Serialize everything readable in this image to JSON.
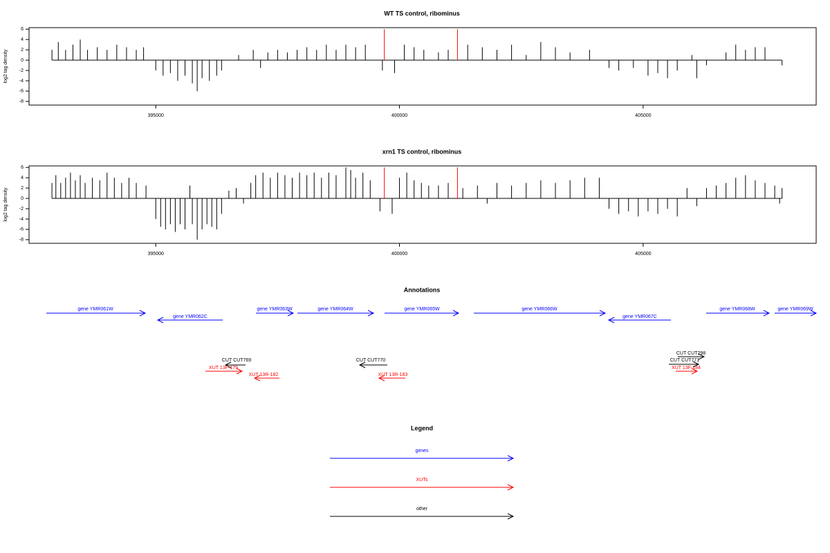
{
  "chart_data": [
    {
      "type": "bar",
      "title": "WT TS control, ribominus",
      "y_label": "log2 tag density",
      "series": [
        {
          "color": "#000000",
          "x": [
            392870,
            393000,
            393150,
            393300,
            393450,
            393600,
            393800,
            394000,
            394200,
            394400,
            394600,
            394750,
            395000,
            395150,
            395300,
            395450,
            395600,
            395750,
            395850,
            395950,
            396100,
            396250,
            396350,
            396700,
            397000,
            397150,
            397300,
            397500,
            397700,
            397900,
            398100,
            398300,
            398500,
            398700,
            398900,
            399100,
            399300,
            399650,
            399900,
            400100,
            400300,
            400500,
            400800,
            401000,
            401400,
            401700,
            402000,
            402300,
            402600,
            402900,
            403200,
            403500,
            403900,
            404300,
            404500,
            404800,
            405100,
            405300,
            405500,
            405700,
            406000,
            406100,
            406300,
            406700,
            406900,
            407100,
            407300,
            407500,
            407850
          ],
          "values": [
            2,
            3.5,
            2,
            3,
            4,
            2,
            2.5,
            2,
            3,
            2.5,
            2,
            2.5,
            -2,
            -3,
            -2.5,
            -4,
            -3,
            -4.5,
            -6,
            -3.5,
            -4,
            -3,
            -2,
            1,
            2,
            -1.5,
            1.5,
            2,
            1.5,
            2,
            2.5,
            2,
            3,
            2,
            3,
            2.5,
            3,
            -2,
            -2.5,
            3,
            2.5,
            2,
            1.5,
            2,
            3,
            2.5,
            2,
            3,
            1,
            3.5,
            2.5,
            1.5,
            2,
            -1.5,
            -2,
            -1.5,
            -3,
            -2.5,
            -3.5,
            -2,
            1,
            -3.5,
            -1,
            1.5,
            3,
            2,
            2.5,
            2.5,
            -1
          ]
        },
        {
          "color": "#ff0000",
          "x": [
            399690,
            401190
          ],
          "values": [
            6,
            6
          ]
        }
      ],
      "xlim": [
        392400,
        408550
      ],
      "ylim": [
        -8.7,
        6.3
      ],
      "xticks": [
        395000,
        400000,
        405000
      ],
      "yticks": [
        -8,
        -6,
        -4,
        -2,
        0,
        2,
        4,
        6
      ]
    },
    {
      "type": "bar",
      "title": "xrn1 TS control, ribominus",
      "y_label": "log2 tag density",
      "series": [
        {
          "color": "#000000",
          "x": [
            392870,
            392950,
            393050,
            393150,
            393250,
            393350,
            393450,
            393550,
            393700,
            393850,
            394000,
            394150,
            394300,
            394450,
            394600,
            394800,
            395000,
            395100,
            395200,
            395300,
            395400,
            395500,
            395600,
            395700,
            395750,
            395850,
            395950,
            396050,
            396150,
            396250,
            396350,
            396500,
            396650,
            396800,
            396950,
            397050,
            397200,
            397350,
            397500,
            397650,
            397800,
            397950,
            398100,
            398250,
            398400,
            398550,
            398700,
            398900,
            399000,
            399100,
            399250,
            399400,
            399600,
            399850,
            400000,
            400150,
            400300,
            400450,
            400600,
            400800,
            401000,
            401300,
            401600,
            401800,
            402000,
            402300,
            402600,
            402900,
            403200,
            403500,
            403800,
            404100,
            404300,
            404500,
            404700,
            404900,
            405100,
            405300,
            405500,
            405700,
            405900,
            406100,
            406300,
            406500,
            406700,
            406900,
            407100,
            407300,
            407500,
            407700,
            407800,
            407850
          ],
          "values": [
            3,
            4.5,
            3,
            4,
            5,
            3.5,
            4.5,
            3,
            4,
            3.5,
            5,
            4,
            3,
            4,
            3,
            2.5,
            -4,
            -5.5,
            -6,
            -5,
            -6.5,
            -5,
            -6,
            2.5,
            -5,
            -8,
            -6,
            -5,
            -5.5,
            -6,
            -3,
            1.5,
            2,
            -1,
            3,
            4.5,
            5,
            4,
            5,
            4.5,
            4,
            5,
            4.5,
            5,
            4,
            5,
            4.5,
            6,
            5.5,
            4,
            5,
            3.5,
            -2.5,
            -3,
            4,
            5,
            3.5,
            3,
            2.5,
            2.5,
            3,
            2,
            2.5,
            -1,
            3,
            2.5,
            3,
            3.5,
            3,
            3.5,
            4,
            4,
            -2,
            -3,
            -2.5,
            -3.5,
            -2.5,
            -3,
            -2,
            -3.5,
            2,
            -1.5,
            2,
            2.5,
            3,
            4,
            4.5,
            3.5,
            3,
            2.5,
            -1,
            2
          ]
        },
        {
          "color": "#ff0000",
          "x": [
            399690,
            401190
          ],
          "values": [
            6,
            6
          ]
        }
      ],
      "xlim": [
        392400,
        408550
      ],
      "ylim": [
        -8.7,
        6.3
      ],
      "xticks": [
        395000,
        400000,
        405000
      ],
      "yticks": [
        -8,
        -6,
        -4,
        -2,
        0,
        2,
        4,
        6
      ]
    }
  ],
  "annotations": {
    "title": "Annotations",
    "features": [
      {
        "label": "gene YMR061W",
        "color": "#0000ff"
      },
      {
        "label": "gene YMR062C",
        "color": "#0000ff"
      },
      {
        "label": "gene YMR063W",
        "color": "#0000ff"
      },
      {
        "label": "gene YMR064W",
        "color": "#0000ff"
      },
      {
        "label": "gene YMR065W",
        "color": "#0000ff"
      },
      {
        "label": "gene YMR066W",
        "color": "#0000ff"
      },
      {
        "label": "gene YMR067C",
        "color": "#0000ff"
      },
      {
        "label": "gene YMR068W",
        "color": "#0000ff"
      },
      {
        "label": "gene YMR069W",
        "color": "#0000ff"
      },
      {
        "label": "CUT CUT769",
        "color": "#000000"
      },
      {
        "label": "XUT 13F-179",
        "color": "#ff0000"
      },
      {
        "label": "XUT 13R-182",
        "color": "#ff0000"
      },
      {
        "label": "CUT CUT770",
        "color": "#000000"
      },
      {
        "label": "XUT 13R-183",
        "color": "#ff0000"
      },
      {
        "label": "CUT CUT298",
        "color": "#000000"
      },
      {
        "label": "CUT CUT771",
        "color": "#000000"
      },
      {
        "label": "XUT 13F-184",
        "color": "#ff0000"
      }
    ]
  },
  "legend": {
    "title": "Legend",
    "items": [
      {
        "label": "genes",
        "color": "#0000ff"
      },
      {
        "label": "XUTs",
        "color": "#ff0000"
      },
      {
        "label": "other",
        "color": "#000000"
      }
    ]
  }
}
